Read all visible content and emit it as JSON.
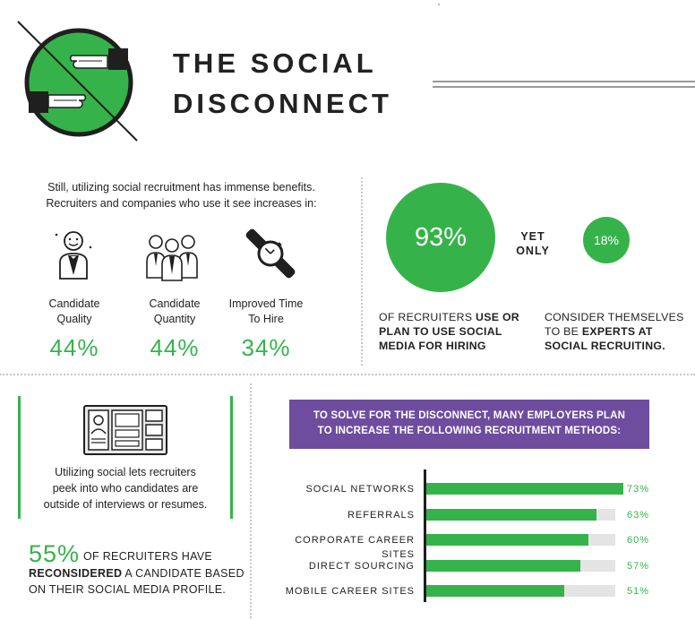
{
  "header": {
    "title_line1": "THE SOCIAL",
    "title_line2": "DISCONNECT",
    "logo_icon": "handshake-disconnect-icon"
  },
  "benefits": {
    "intro_line1": "Still, utilizing social recruitment has immense benefits.",
    "intro_line2": "Recruiters and companies who use it see increases in:",
    "metrics": [
      {
        "label_line1": "Candidate",
        "label_line2": "Quality",
        "value": "44%",
        "icon": "happy-candidate-icon"
      },
      {
        "label_line1": "Candidate",
        "label_line2": "Quantity",
        "value": "44%",
        "icon": "candidate-group-icon"
      },
      {
        "label_line1": "Improved Time",
        "label_line2": "To Hire",
        "value": "34%",
        "icon": "wristwatch-icon"
      }
    ]
  },
  "comparison": {
    "big_value": "93%",
    "yet_line1": "YET",
    "yet_line2": "ONLY",
    "small_value": "18%",
    "caption_left": {
      "normal_1": "OF RECRUITERS ",
      "bold": "USE OR PLAN TO USE SOCIAL MEDIA FOR HIRING"
    },
    "caption_right": {
      "normal_1": "CONSIDER THEMSELVES TO BE ",
      "bold": "EXPERTS AT SOCIAL RECRUITING."
    }
  },
  "social_profile": {
    "icon": "profile-page-icon",
    "text_line1": "Utilizing social lets recruiters",
    "text_line2": "peek into who candidates are",
    "text_line3": "outside of interviews or resumes.",
    "pct": "55%",
    "line1": "OF RECRUITERS HAVE",
    "line2_bold": "RECONSIDERED",
    "line2_rest": " A CANDIDATE BASED",
    "line3": "ON THEIR SOCIAL MEDIA PROFILE."
  },
  "banner": {
    "line1": "TO SOLVE FOR THE DISCONNECT, MANY EMPLOYERS PLAN",
    "line2": "TO INCREASE THE FOLLOWING RECRUITMENT METHODS:"
  },
  "colors": {
    "accent_green": "#35b34a",
    "banner_purple": "#6e4c9e",
    "track_gray": "#e4e4e4"
  },
  "chart_data": {
    "type": "bar",
    "orientation": "horizontal",
    "categories": [
      "SOCIAL NETWORKS",
      "REFERRALS",
      "CORPORATE CAREER SITES",
      "DIRECT SOURCING",
      "MOBILE CAREER SITES"
    ],
    "values": [
      73,
      63,
      60,
      57,
      51
    ],
    "value_labels": [
      "73%",
      "63%",
      "60%",
      "57%",
      "51%"
    ],
    "xlim": [
      0,
      100
    ]
  }
}
